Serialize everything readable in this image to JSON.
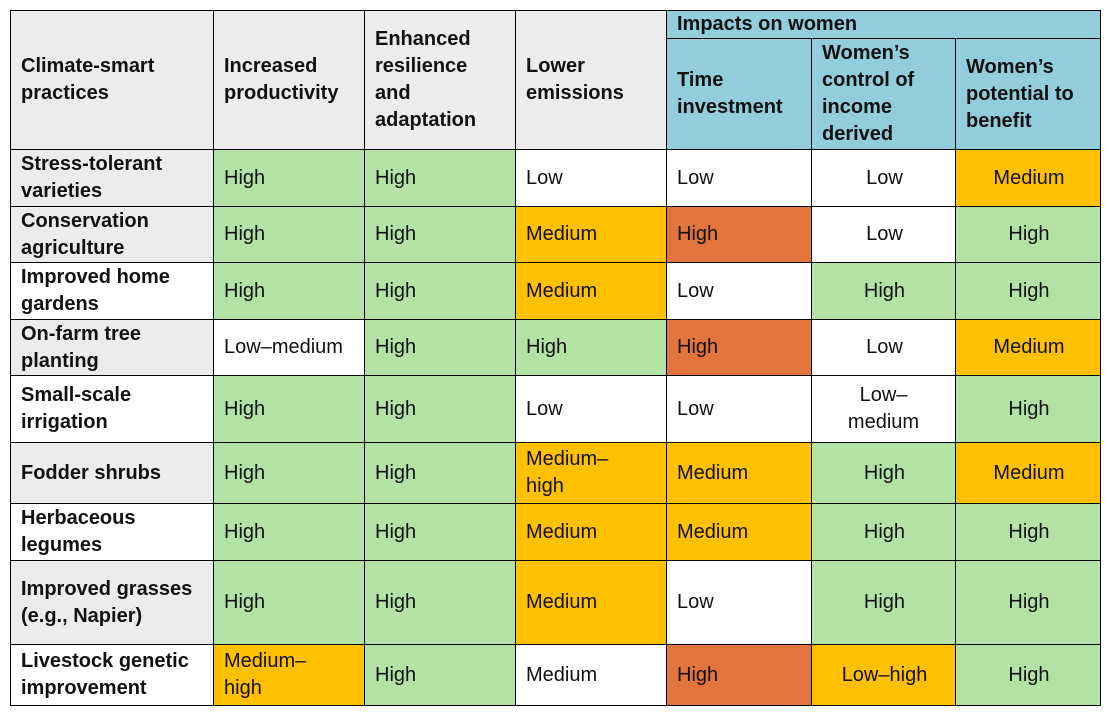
{
  "table": {
    "headers": {
      "practices": "Climate-smart practices",
      "productivity": "Increased productivity",
      "resilience": "Enhanced resilience and adaptation",
      "emissions": "Lower emissions",
      "women_group": "Impacts on women",
      "time": "Time investment",
      "control": "Women’s control of income derived",
      "benefit": "Women’s potential to benefit"
    },
    "colors": {
      "high": "#b3e2a5",
      "medium": "#ffc000",
      "time_high": "#e2753e",
      "low": "#ffffff",
      "header": "#ececec",
      "women_header": "#92cddc"
    },
    "rows": [
      {
        "practice": "Stress-tolerant varieties",
        "productivity": "High",
        "resilience": "High",
        "emissions": "Low",
        "time": "Low",
        "control": "Low",
        "benefit": "Medium"
      },
      {
        "practice": "Conservation agriculture",
        "productivity": "High",
        "resilience": "High",
        "emissions": "Medium",
        "time": "High",
        "control": "Low",
        "benefit": "High"
      },
      {
        "practice": "Improved home gardens",
        "productivity": "High",
        "resilience": "High",
        "emissions": "Medium",
        "time": "Low",
        "control": "High",
        "benefit": "High"
      },
      {
        "practice": "On-farm tree planting",
        "productivity": "Low–medium",
        "resilience": "High",
        "emissions": "High",
        "time": "High",
        "control": "Low",
        "benefit": "Medium"
      },
      {
        "practice": "Small-scale irrigation",
        "productivity": "High",
        "resilience": "High",
        "emissions": "Low",
        "time": "Low",
        "control": "Low–medium",
        "benefit": "High"
      },
      {
        "practice": "Fodder shrubs",
        "productivity": "High",
        "resilience": "High",
        "emissions": "Medium–high",
        "time": "Medium",
        "control": "High",
        "benefit": "Medium"
      },
      {
        "practice": "Herbaceous legumes",
        "productivity": "High",
        "resilience": "High",
        "emissions": "Medium",
        "time": "Medium",
        "control": "High",
        "benefit": "High"
      },
      {
        "practice": "Improved grasses (e.g., Napier)",
        "productivity": "High",
        "resilience": "High",
        "emissions": "Medium",
        "time": "Low",
        "control": "High",
        "benefit": "High"
      },
      {
        "practice": "Livestock genetic improvement",
        "productivity": "Medium–high",
        "resilience": "High",
        "emissions": "Medium",
        "time": "High",
        "control": "Low–high",
        "benefit": "High"
      }
    ]
  }
}
